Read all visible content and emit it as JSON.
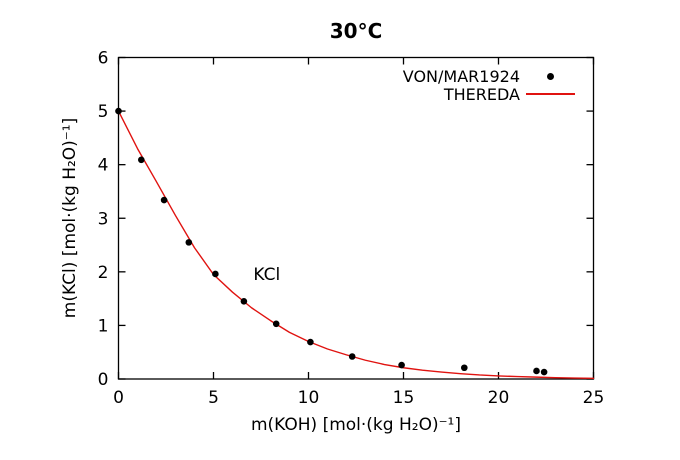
{
  "chart_data": {
    "type": "line",
    "title": "30°C",
    "xlabel": "m(KOH) [mol·(kg H₂O)⁻¹]",
    "ylabel": "m(KCl) [mol·(kg H₂O)⁻¹]",
    "xlim": [
      0,
      25
    ],
    "ylim": [
      0,
      6
    ],
    "x_ticks": [
      0,
      5,
      10,
      15,
      20,
      25
    ],
    "y_ticks": [
      0,
      1,
      2,
      3,
      4,
      5,
      6
    ],
    "grid": false,
    "legend_position": "top-right-inside",
    "frame_color": "#000000",
    "background_color": "#ffffff",
    "series": [
      {
        "name": "VON/MAR1924",
        "type": "scatter",
        "marker": "filled-circle",
        "color": "#000000",
        "points": [
          [
            0.0,
            5.0
          ],
          [
            1.2,
            4.09
          ],
          [
            2.4,
            3.34
          ],
          [
            3.7,
            2.55
          ],
          [
            5.1,
            1.96
          ],
          [
            6.6,
            1.45
          ],
          [
            8.3,
            1.03
          ],
          [
            10.1,
            0.69
          ],
          [
            12.3,
            0.42
          ],
          [
            14.9,
            0.26
          ],
          [
            18.2,
            0.21
          ],
          [
            22.0,
            0.15
          ],
          [
            22.4,
            0.13
          ]
        ]
      },
      {
        "name": "THEREDA",
        "type": "line",
        "color": "#e01310",
        "points": [
          [
            0,
            5.0
          ],
          [
            1,
            4.3
          ],
          [
            2,
            3.68
          ],
          [
            3,
            3.05
          ],
          [
            4,
            2.45
          ],
          [
            5,
            1.95
          ],
          [
            6,
            1.62
          ],
          [
            7,
            1.33
          ],
          [
            8,
            1.09
          ],
          [
            9,
            0.87
          ],
          [
            10,
            0.7
          ],
          [
            11,
            0.56
          ],
          [
            12,
            0.45
          ],
          [
            13,
            0.35
          ],
          [
            14,
            0.27
          ],
          [
            15,
            0.21
          ],
          [
            16,
            0.165
          ],
          [
            17,
            0.13
          ],
          [
            18,
            0.1
          ],
          [
            19,
            0.075
          ],
          [
            20,
            0.058
          ],
          [
            21,
            0.045
          ],
          [
            22,
            0.035
          ],
          [
            23,
            0.025
          ],
          [
            24,
            0.018
          ],
          [
            25,
            0.012
          ]
        ]
      }
    ],
    "annotations": [
      {
        "text": "KCl",
        "x": 7.1,
        "y": 1.85
      }
    ]
  }
}
